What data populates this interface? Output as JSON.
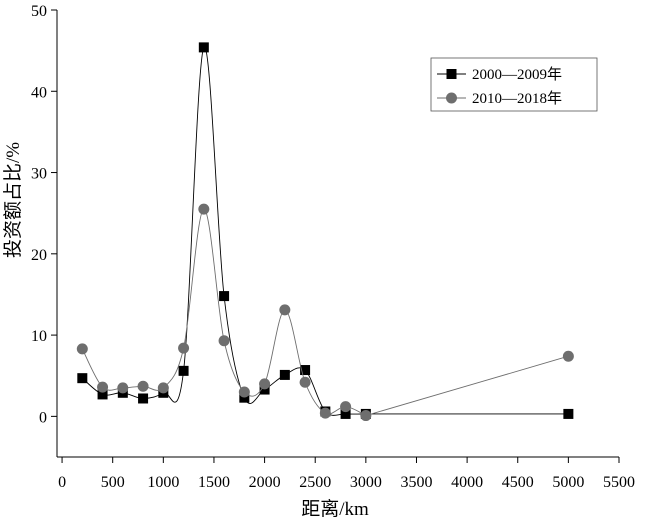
{
  "chart_data": {
    "type": "line",
    "xlabel": "距离/km",
    "ylabel": "投资额占比/%",
    "xlim": [
      -50,
      5500
    ],
    "ylim": [
      -5,
      50
    ],
    "xticks": [
      0,
      500,
      1000,
      1500,
      2000,
      2500,
      3000,
      3500,
      4000,
      4500,
      5000,
      5500
    ],
    "yticks": [
      0,
      10,
      20,
      30,
      40,
      50
    ],
    "grid": false,
    "legend_position": "top-right",
    "series": [
      {
        "name": "2000—2009年",
        "marker": "square",
        "color": "#000000",
        "x": [
          200,
          400,
          600,
          800,
          1000,
          1200,
          1400,
          1600,
          1800,
          2000,
          2200,
          2400,
          2600,
          2800,
          3000,
          5000
        ],
        "y": [
          4.7,
          2.7,
          2.9,
          2.2,
          2.9,
          5.6,
          45.4,
          14.8,
          2.3,
          3.3,
          5.1,
          5.7,
          0.6,
          0.3,
          0.3,
          0.3
        ]
      },
      {
        "name": "2010—2018年",
        "marker": "circle",
        "color": "#6e6e6e",
        "x": [
          200,
          400,
          600,
          800,
          1000,
          1200,
          1400,
          1600,
          1800,
          2000,
          2200,
          2400,
          2600,
          2800,
          3000,
          5000
        ],
        "y": [
          8.3,
          3.6,
          3.5,
          3.7,
          3.5,
          8.4,
          25.5,
          9.3,
          3.0,
          4.0,
          13.1,
          4.2,
          0.4,
          1.2,
          0.1,
          7.4
        ]
      }
    ]
  }
}
